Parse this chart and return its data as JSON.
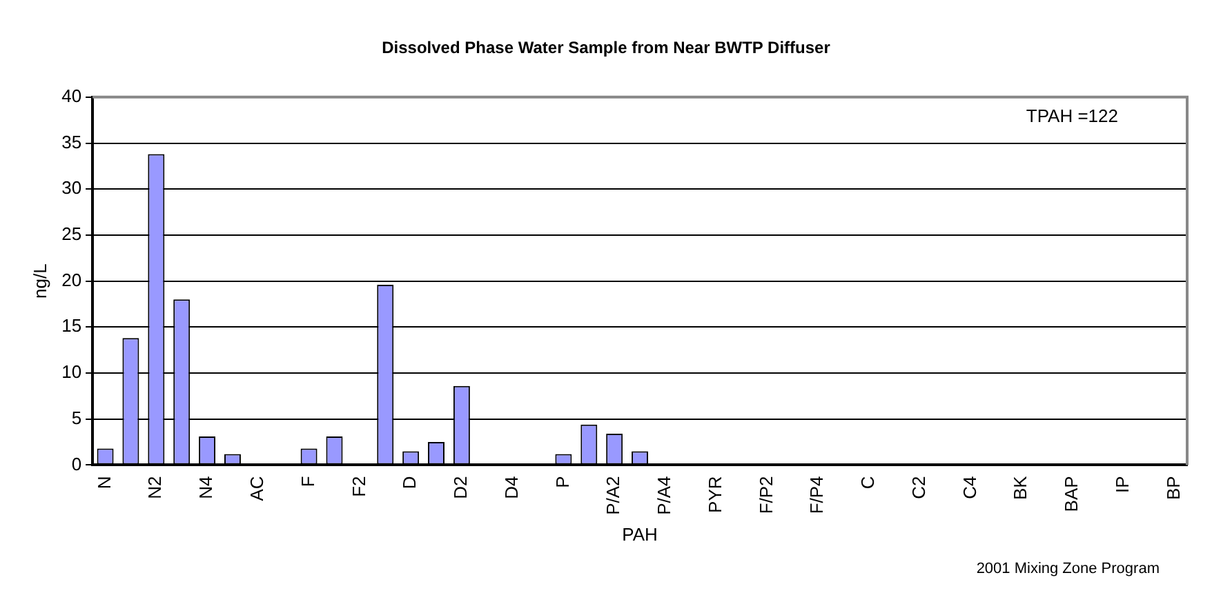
{
  "chart_data": {
    "type": "bar",
    "title": "Dissolved Phase Water Sample from Near BWTP Diffuser",
    "xlabel": "PAH",
    "ylabel": "ng/L",
    "categories": [
      "N",
      null,
      "N2",
      null,
      "N4",
      null,
      "AC",
      null,
      "F",
      null,
      "F2",
      null,
      "D",
      null,
      "D2",
      null,
      "D4",
      null,
      "P",
      null,
      "P/A2",
      null,
      "P/A4",
      null,
      "PYR",
      null,
      "F/P2",
      null,
      "F/P4",
      null,
      "C",
      null,
      "C2",
      null,
      "C4",
      null,
      "BK",
      null,
      "BAP",
      null,
      "IP",
      null,
      "BP"
    ],
    "values": [
      1.8,
      13.8,
      33.8,
      18.0,
      3.1,
      1.2,
      0,
      0,
      1.8,
      3.1,
      0,
      19.6,
      1.5,
      2.5,
      8.6,
      0,
      0,
      0,
      1.2,
      4.4,
      3.4,
      1.5,
      0,
      0,
      0,
      0,
      0,
      0,
      0,
      0,
      0,
      0,
      0,
      0,
      0,
      0,
      0,
      0,
      0,
      0,
      0,
      0,
      0
    ],
    "color": "#9999ff",
    "ylim": [
      0,
      40
    ],
    "yticks": [
      0,
      5,
      10,
      15,
      20,
      25,
      30,
      35,
      40
    ],
    "grid": "y",
    "legend": false,
    "annotations": [
      "TPAH =122",
      "2001 Mixing Zone Program"
    ]
  }
}
